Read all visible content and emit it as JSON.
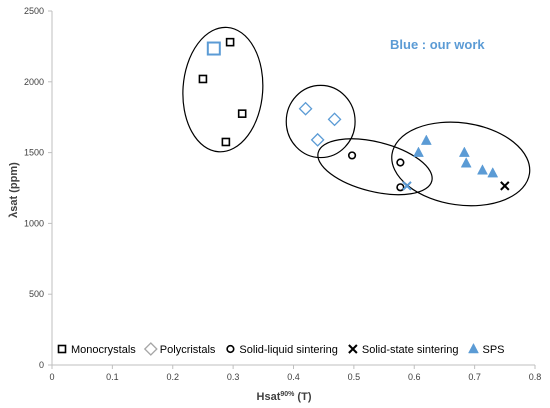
{
  "chart_data": {
    "type": "scatter",
    "xlabel": "Hsat",
    "xlabel_sup": "90%",
    "xlabel_unit": " (T)",
    "ylabel": "λsat (ppm)",
    "xlim": [
      0,
      0.8
    ],
    "ylim": [
      0,
      2500
    ],
    "x_ticks": [
      "0",
      "0.1",
      "0.2",
      "0.3",
      "0.4",
      "0.5",
      "0.6",
      "0.7",
      "0.8"
    ],
    "y_ticks": [
      "0",
      "500",
      "1000",
      "1500",
      "2000",
      "2500"
    ],
    "grid": false,
    "legend_position": "bottom",
    "annotation": {
      "text": "Blue : our work",
      "color": "#5B9BD5"
    },
    "series": [
      {
        "name": "Monocrystals",
        "marker": "square-open",
        "color": "#000000",
        "x": [
          0.295,
          0.25,
          0.315,
          0.288
        ],
        "y": [
          2280,
          2020,
          1775,
          1575
        ]
      },
      {
        "name": "Monocrystals (our work)",
        "marker": "square-open-large",
        "color": "#5B9BD5",
        "x": [
          0.268
        ],
        "y": [
          2235
        ]
      },
      {
        "name": "Polycristals",
        "marker": "diamond-open",
        "color": "#5B9BD5",
        "x": [
          0.42,
          0.468,
          0.44
        ],
        "y": [
          1810,
          1735,
          1590
        ]
      },
      {
        "name": "Solid-liquid sintering",
        "marker": "circle-open",
        "color": "#000000",
        "x": [
          0.497,
          0.577,
          0.577
        ],
        "y": [
          1480,
          1430,
          1255
        ]
      },
      {
        "name": "Solid-state sintering",
        "marker": "x",
        "color": "#000000",
        "x": [
          0.75
        ],
        "y": [
          1265
        ]
      },
      {
        "name": "Solid-state sintering (our work)",
        "marker": "x",
        "color": "#5B9BD5",
        "x": [
          0.588
        ],
        "y": [
          1265
        ]
      },
      {
        "name": "SPS",
        "marker": "triangle",
        "color": "#5B9BD5",
        "x": [
          0.62,
          0.607,
          0.683,
          0.686,
          0.713,
          0.73
        ],
        "y": [
          1585,
          1500,
          1500,
          1425,
          1375,
          1355
        ]
      }
    ],
    "legend": [
      {
        "label": "Monocrystals",
        "marker": "square-open",
        "color": "#000000"
      },
      {
        "label": "Polycristals",
        "marker": "diamond-open",
        "color": "#A6A6A6"
      },
      {
        "label": "Solid-liquid sintering",
        "marker": "circle-open",
        "color": "#000000"
      },
      {
        "label": "Solid-state sintering",
        "marker": "x",
        "color": "#000000"
      },
      {
        "label": "SPS",
        "marker": "triangle",
        "color": "#5B9BD5"
      }
    ],
    "ellipses": [
      {
        "cx": 0.283,
        "cy": 1945,
        "rx": 0.066,
        "ry": 440,
        "angle_deg": 4
      },
      {
        "cx": 0.445,
        "cy": 1720,
        "rx": 0.057,
        "ry": 255,
        "angle_deg": 0
      },
      {
        "cx": 0.535,
        "cy": 1400,
        "rx": 0.097,
        "ry": 175,
        "angle_deg": 14
      },
      {
        "cx": 0.677,
        "cy": 1420,
        "rx": 0.115,
        "ry": 290,
        "angle_deg": 8
      }
    ]
  }
}
